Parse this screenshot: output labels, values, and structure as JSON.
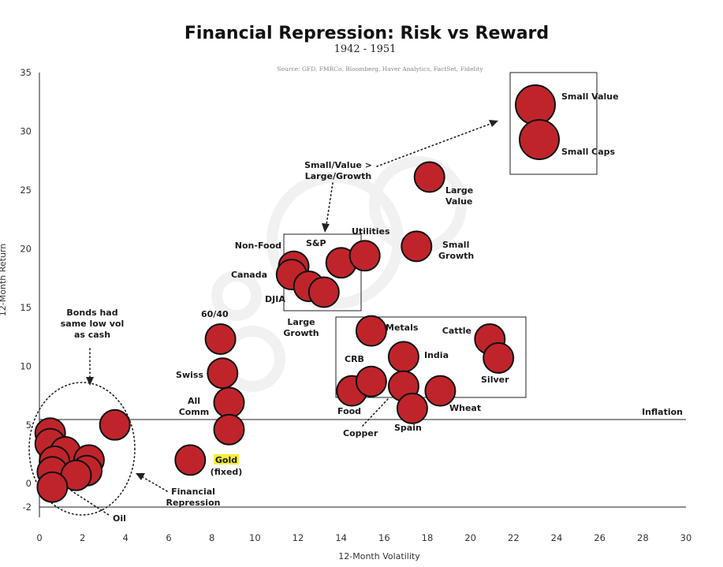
{
  "chart_data": {
    "type": "scatter",
    "title": "Financial Repression: Risk vs Reward",
    "subtitle": "1942 - 1951",
    "source": "Source: GFD, FMRCo, Bloomberg, Haver Analytics, FactSet, Fidelity",
    "xlabel": "12-Month Volatility",
    "ylabel": "12-Month Return",
    "xlim": [
      0,
      30
    ],
    "ylim": [
      -2,
      35
    ],
    "xticks": [
      0,
      2,
      4,
      6,
      8,
      10,
      12,
      14,
      16,
      18,
      20,
      22,
      24,
      26,
      28,
      30
    ],
    "yticks": [
      35,
      30,
      25,
      20,
      15,
      10,
      5,
      0,
      -2
    ],
    "grid": false,
    "color": "#c0242b",
    "reference_lines": [
      {
        "label": "Inflation",
        "y": 5.3
      }
    ],
    "points": [
      {
        "x": 0.5,
        "y": 4.3
      },
      {
        "x": 0.5,
        "y": 3.4
      },
      {
        "x": 1.2,
        "y": 2.7
      },
      {
        "x": 0.7,
        "y": 1.9
      },
      {
        "x": 2.3,
        "y": 2.0
      },
      {
        "x": 0.6,
        "y": 1.0
      },
      {
        "x": 2.2,
        "y": 1.1
      },
      {
        "x": 1.7,
        "y": 0.7
      },
      {
        "x": 0.6,
        "y": -0.3
      },
      {
        "x": 3.5,
        "y": 5.0
      },
      {
        "x": 7.0,
        "y": 2.0
      },
      {
        "x": 8.4,
        "y": 12.3
      },
      {
        "x": 8.5,
        "y": 9.4
      },
      {
        "x": 8.8,
        "y": 6.9
      },
      {
        "x": 8.8,
        "y": 4.6
      },
      {
        "x": 11.8,
        "y": 18.5
      },
      {
        "x": 11.7,
        "y": 17.8
      },
      {
        "x": 12.5,
        "y": 16.8
      },
      {
        "x": 13.2,
        "y": 16.3
      },
      {
        "x": 14.0,
        "y": 18.8
      },
      {
        "x": 15.1,
        "y": 19.4
      },
      {
        "x": 17.5,
        "y": 20.2
      },
      {
        "x": 18.1,
        "y": 26.1
      },
      {
        "x": 15.4,
        "y": 13.0
      },
      {
        "x": 16.9,
        "y": 10.8
      },
      {
        "x": 14.5,
        "y": 7.9
      },
      {
        "x": 15.4,
        "y": 8.7
      },
      {
        "x": 16.9,
        "y": 8.3
      },
      {
        "x": 17.3,
        "y": 6.4
      },
      {
        "x": 18.6,
        "y": 7.9
      },
      {
        "x": 20.9,
        "y": 12.3
      },
      {
        "x": 21.3,
        "y": 10.7
      }
    ],
    "legend_box_points": [
      {
        "label": "Small Value"
      },
      {
        "label": "Small Caps"
      }
    ],
    "labels": {
      "large_value": [
        "Large",
        "Value"
      ],
      "small_growth": [
        "Small",
        "Growth"
      ],
      "utilities": "Utilities",
      "sp": "S&P",
      "non_food": "Non-Food",
      "canada": "Canada",
      "djia": "DJIA",
      "large_growth": [
        "Large",
        "Growth"
      ],
      "metals": "Metals",
      "cattle": "Cattle",
      "crb": "CRB",
      "india": "India",
      "silver": "Silver",
      "food": "Food",
      "wheat": "Wheat",
      "copper": "Copper",
      "spain": "Spain",
      "sixty_forty": "60/40",
      "swiss": "Swiss",
      "all_comm": [
        "All",
        "Comm"
      ],
      "gold": "Gold",
      "gold_sub": "(fixed)",
      "oil": "Oil"
    },
    "annotations": {
      "bonds": [
        "Bonds had",
        "same low vol",
        "as cash"
      ],
      "financial_repression": [
        "Financial",
        "Repression"
      ],
      "small_value_vs_large_growth": [
        "Small/Value >",
        "Large/Growth"
      ]
    }
  }
}
